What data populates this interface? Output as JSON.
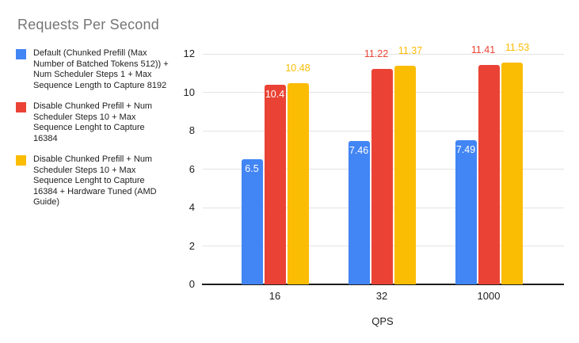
{
  "chart_data": {
    "type": "bar",
    "title": "Requests Per Second",
    "xlabel": "QPS",
    "ylabel": "",
    "categories": [
      "16",
      "32",
      "1000"
    ],
    "series": [
      {
        "key": "blue",
        "name": "Default (Chunked Prefill (Max Number of Batched Tokens 512)) + Num Scheduler Steps 1 + Max Sequence Length to Capture 8192",
        "color": "#4285F4",
        "values": [
          6.5,
          7.46,
          7.49
        ],
        "label_placement": [
          "inside",
          "inside",
          "inside"
        ]
      },
      {
        "key": "red",
        "name": "Disable Chunked Prefill + Num Scheduler Steps 10 + Max Sequence Lenght to Capture 16384",
        "color": "#EA4335",
        "values": [
          10.4,
          11.22,
          11.41
        ],
        "label_placement": [
          "inside",
          "outside",
          "outside"
        ]
      },
      {
        "key": "yellow",
        "name": "Disable Chunked Prefill + Num Scheduler Steps 10 + Max Sequence Lenght to Capture 16384 + Hardware Tuned (AMD Guide)",
        "color": "#FBBC04",
        "values": [
          10.48,
          11.37,
          11.53
        ],
        "label_placement": [
          "outside",
          "outside",
          "outside"
        ]
      }
    ],
    "ylim": [
      0,
      12
    ],
    "yticks": [
      0,
      2,
      4,
      6,
      8,
      10,
      12
    ],
    "grid": true,
    "legend_position": "left",
    "inside_label_color": "#ffffff",
    "background_color": "#ffffff",
    "gridline_color": "#e3e3e3",
    "axis_line_color": "#1d1d1d",
    "title_color": "#757575"
  }
}
